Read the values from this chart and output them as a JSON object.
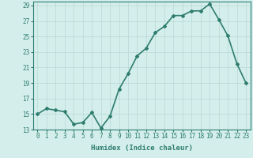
{
  "x": [
    0,
    1,
    2,
    3,
    4,
    5,
    6,
    7,
    8,
    9,
    10,
    11,
    12,
    13,
    14,
    15,
    16,
    17,
    18,
    19,
    20,
    21,
    22,
    23
  ],
  "y": [
    15,
    15.7,
    15.5,
    15.3,
    13.7,
    13.9,
    15.2,
    13.2,
    14.7,
    18.2,
    20.2,
    22.5,
    23.5,
    25.5,
    26.3,
    27.7,
    27.7,
    28.3,
    28.3,
    29.2,
    27.2,
    25.1,
    21.5,
    19.0
  ],
  "line_color": "#2e7d6e",
  "marker": "D",
  "marker_size": 2,
  "bg_color": "#d4eeec",
  "grid_color": "#b8d8d4",
  "xlabel": "Humidex (Indice chaleur)",
  "xlim": [
    -0.5,
    23.5
  ],
  "ylim": [
    13,
    29.5
  ],
  "yticks": [
    13,
    15,
    17,
    19,
    21,
    23,
    25,
    27,
    29
  ],
  "xtick_labels": [
    "0",
    "1",
    "2",
    "3",
    "4",
    "5",
    "6",
    "7",
    "8",
    "9",
    "10",
    "11",
    "12",
    "13",
    "14",
    "15",
    "16",
    "17",
    "18",
    "19",
    "20",
    "21",
    "22",
    "23"
  ],
  "linewidth": 1.2,
  "font_color": "#2e7d6e",
  "tick_fontsize": 5.5,
  "xlabel_fontsize": 6.5
}
